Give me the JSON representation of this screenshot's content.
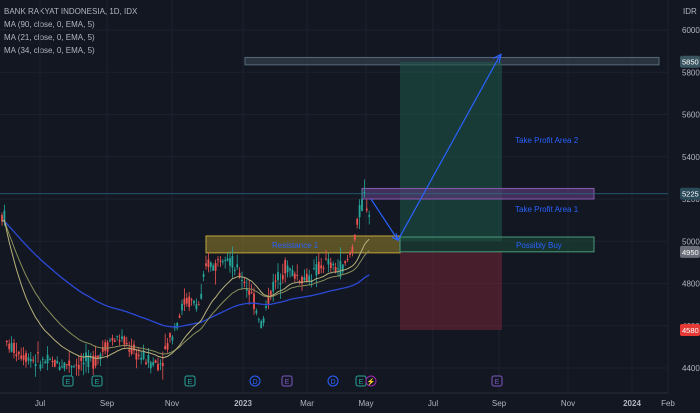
{
  "header": {
    "title": "BANK RAKYAT INDONESIA, 1D, IDX",
    "indicators": [
      "MA (90, close, 0, EMA, 5)",
      "MA (21, close, 0, EMA, 5)",
      "MA (34, close, 0, EMA, 5)"
    ]
  },
  "chart_data": {
    "type": "candlestick",
    "currency_label": "IDR",
    "y_ticks": [
      "6000",
      "5800",
      "5600",
      "5400",
      "5200",
      "5000",
      "4800",
      "4600",
      "4400"
    ],
    "ylim": [
      4330,
      6030
    ],
    "x_ticks": [
      "Jul",
      "Sep",
      "Nov",
      "2023",
      "Mar",
      "May",
      "Jul",
      "Sep",
      "Nov",
      "2024",
      "Feb"
    ],
    "price_tags": [
      {
        "text": "5850",
        "value": 5850,
        "color": "#3a5560"
      },
      {
        "text": "5225",
        "value": 5225,
        "color": "#2a4a5a"
      },
      {
        "text": "4950",
        "value": 4950,
        "color": "#6a6d78"
      },
      {
        "text": "4580",
        "value": 4580,
        "color": "#e53935"
      }
    ],
    "zones": [
      {
        "label": "Resistance 1",
        "y_top": 5020,
        "y_bottom": 4945,
        "color": "#8a7a2a"
      },
      {
        "label": "Possibly Buy",
        "y_top": 5020,
        "y_bottom": 4950,
        "color": "#1d4d3a"
      },
      {
        "label": "Take Profit Area 1",
        "y_top": 5250,
        "y_bottom": 5200,
        "color": "#5a3a7a"
      },
      {
        "label": "Take Profit Area 2",
        "y_top": 5870,
        "y_bottom": 5835,
        "color": "#3a4a58"
      }
    ],
    "trade": {
      "entry": 5000,
      "take_profit": 5850,
      "stop_loss": 4580
    },
    "event_markers": [
      "E",
      "E",
      "E",
      "D",
      "E",
      "D",
      "E",
      "⚡",
      "E"
    ]
  }
}
